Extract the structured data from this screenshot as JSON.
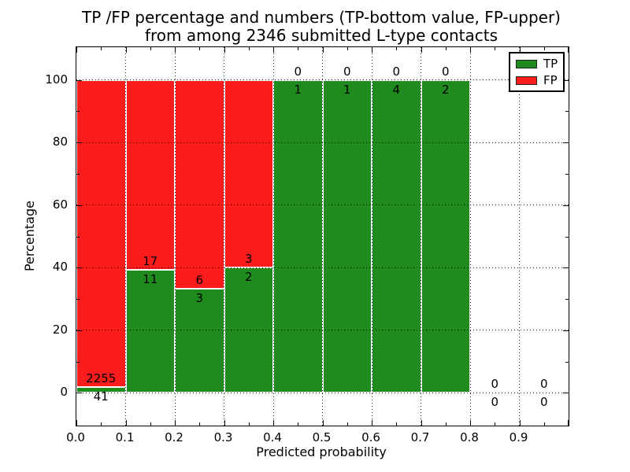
{
  "chart_data": {
    "type": "bar",
    "stacked": true,
    "orientation": "vertical",
    "title_line1": "TP /FP percentage and numbers (TP-bottom value, FP-upper)",
    "title_line2": "from among 2346 submitted L-type contacts",
    "xlabel": "Predicted probability",
    "ylabel": "Percentage",
    "total_contacts": 2346,
    "bin_width": 0.1,
    "categories": [
      "0.0-0.1",
      "0.1-0.2",
      "0.2-0.3",
      "0.3-0.4",
      "0.4-0.5",
      "0.5-0.6",
      "0.6-0.7",
      "0.7-0.8",
      "0.8-0.9",
      "0.9-1.0"
    ],
    "series": [
      {
        "name": "TP",
        "color": "#1f8b1f",
        "values": [
          41,
          11,
          3,
          2,
          1,
          1,
          4,
          2,
          0,
          0
        ]
      },
      {
        "name": "FP",
        "color": "#fd1c1c",
        "values": [
          2255,
          17,
          6,
          3,
          0,
          0,
          0,
          0,
          0,
          0
        ]
      }
    ],
    "bars_are_percent_stacked_to": 100,
    "xlim": [
      0.0,
      1.0
    ],
    "ylim": [
      -10.5,
      110.5
    ],
    "xtick_labels": [
      "0.0",
      "0.1",
      "0.2",
      "0.3",
      "0.4",
      "0.5",
      "0.6",
      "0.7",
      "0.8",
      "0.9"
    ],
    "ytick_values": [
      0,
      20,
      40,
      60,
      80,
      100
    ],
    "grid": "dotted black, vertical every 0.1 and horizontal every 20, drawn over bars",
    "bar_edge_color": "#ffffff",
    "legend": {
      "position": "upper right",
      "entries": [
        {
          "label": "TP",
          "color": "#1f8b1f"
        },
        {
          "label": "FP",
          "color": "#fd1c1c"
        }
      ]
    }
  }
}
